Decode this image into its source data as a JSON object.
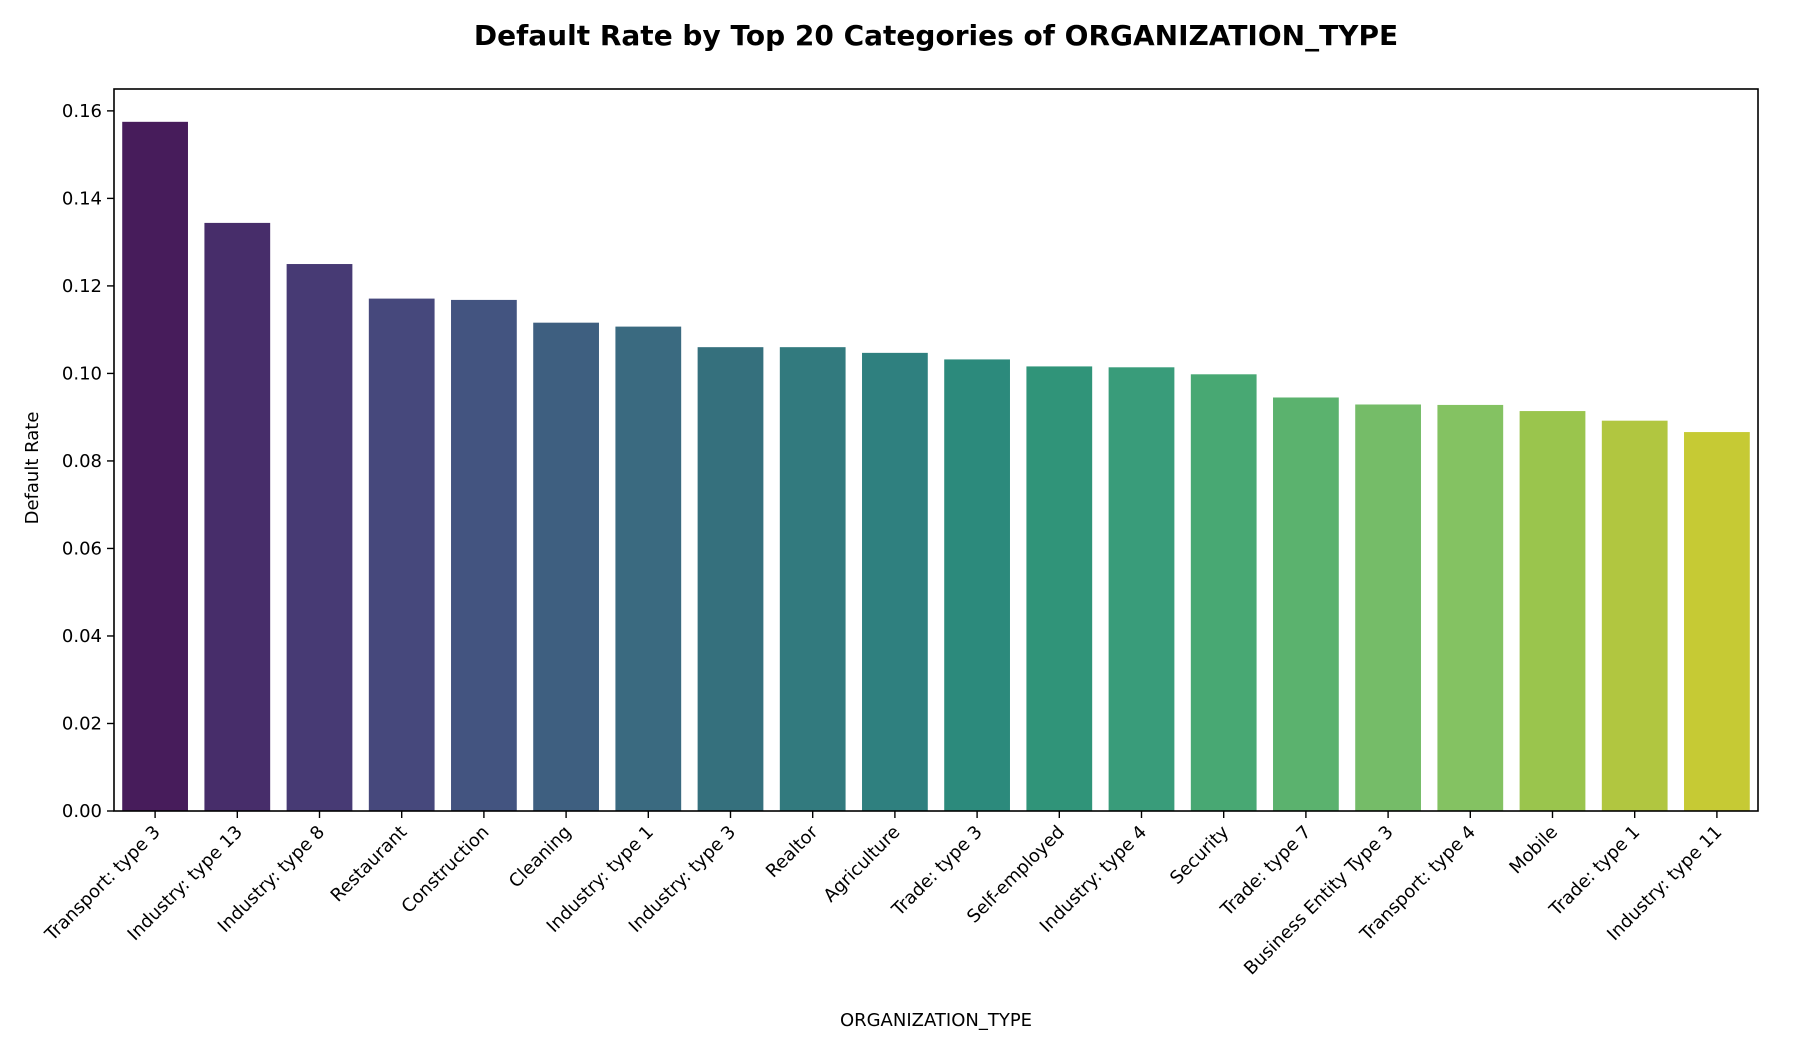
{
  "chart_data": {
    "type": "bar",
    "title": "Default Rate by Top 20 Categories of ORGANIZATION_TYPE",
    "xlabel": "ORGANIZATION_TYPE",
    "ylabel": "Default Rate",
    "categories": [
      "Transport: type 3",
      "Industry: type 13",
      "Industry: type 8",
      "Restaurant",
      "Construction",
      "Cleaning",
      "Industry: type 1",
      "Industry: type 3",
      "Realtor",
      "Agriculture",
      "Trade: type 3",
      "Self-employed",
      "Industry: type 4",
      "Security",
      "Trade: type 7",
      "Business Entity Type 3",
      "Transport: type 4",
      "Mobile",
      "Trade: type 1",
      "Industry: type 11"
    ],
    "values": [
      0.1575,
      0.1344,
      0.125,
      0.1171,
      0.1168,
      0.1116,
      0.1107,
      0.106,
      0.106,
      0.1047,
      0.1032,
      0.1016,
      0.1014,
      0.0998,
      0.0945,
      0.0929,
      0.0928,
      0.0914,
      0.0892,
      0.0866
    ],
    "yticks": [
      "0.00",
      "0.02",
      "0.04",
      "0.06",
      "0.08",
      "0.10",
      "0.12",
      "0.14",
      "0.16"
    ],
    "ylim": [
      0,
      0.165
    ],
    "grid": false,
    "legend": "none",
    "palette": "viridis",
    "colors": [
      "#471c5b",
      "#472d6a",
      "#473a74",
      "#46487c",
      "#435480",
      "#3e5f80",
      "#3a6a80",
      "#35707d",
      "#327a7e",
      "#2f807f",
      "#2c8a7c",
      "#309479",
      "#399c7a",
      "#48a873",
      "#5bb26e",
      "#75bc68",
      "#84c262",
      "#9ac54d",
      "#b1c640",
      "#c6ca34"
    ]
  }
}
